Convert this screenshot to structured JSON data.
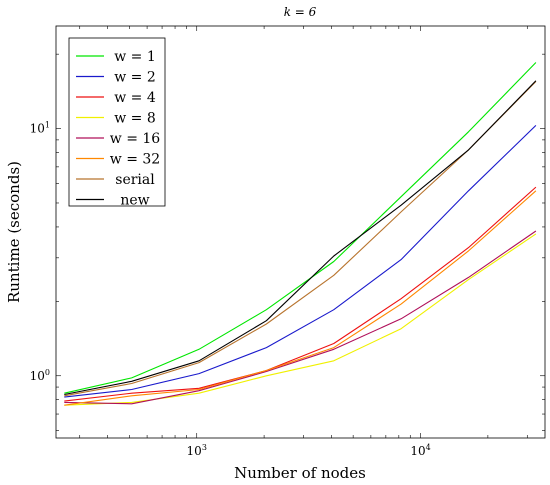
{
  "chart_data": {
    "type": "line",
    "title": "k = 6",
    "xlabel": "Number of nodes",
    "ylabel": "Runtime (seconds)",
    "x_scale": "log",
    "y_scale": "log",
    "xlim": [
      235,
      36000
    ],
    "ylim": [
      0.56,
      26
    ],
    "grid": false,
    "legend_position": "top-left",
    "x_ticks": [
      {
        "value": 1000,
        "base": "10",
        "exp": "3"
      },
      {
        "value": 10000,
        "base": "10",
        "exp": "4"
      }
    ],
    "y_ticks": [
      {
        "value": 1,
        "label": "10",
        "exp": "0"
      },
      {
        "value": 10,
        "label": "10",
        "exp": "1"
      }
    ],
    "x": [
      256,
      512,
      1024,
      2048,
      4096,
      8192,
      16384,
      32768
    ],
    "series": [
      {
        "name": "w = 1",
        "color": "#00e600",
        "values": [
          0.85,
          0.98,
          1.28,
          1.85,
          2.9,
          5.3,
          9.7,
          18.5
        ]
      },
      {
        "name": "w = 2",
        "color": "#1a1acc",
        "values": [
          0.82,
          0.88,
          1.02,
          1.3,
          1.85,
          2.95,
          5.6,
          10.3
        ]
      },
      {
        "name": "w = 4",
        "color": "#ee1111",
        "values": [
          0.79,
          0.85,
          0.89,
          1.05,
          1.35,
          2.05,
          3.3,
          5.8
        ]
      },
      {
        "name": "w = 8",
        "color": "#f0f000",
        "values": [
          0.76,
          0.78,
          0.85,
          1.0,
          1.15,
          1.55,
          2.45,
          3.75
        ]
      },
      {
        "name": "w = 16",
        "color": "#b0105a",
        "values": [
          0.78,
          0.77,
          0.87,
          1.04,
          1.28,
          1.7,
          2.5,
          3.85
        ]
      },
      {
        "name": "w = 32",
        "color": "#ff8800",
        "values": [
          0.76,
          0.83,
          0.88,
          1.05,
          1.3,
          1.95,
          3.2,
          5.6
        ]
      },
      {
        "name": "serial",
        "color": "#b8742e",
        "values": [
          0.83,
          0.93,
          1.13,
          1.62,
          2.55,
          4.6,
          8.2,
          15.5
        ]
      },
      {
        "name": "new",
        "color": "#000000",
        "values": [
          0.84,
          0.95,
          1.15,
          1.67,
          3.05,
          4.9,
          8.2,
          15.6
        ]
      }
    ]
  }
}
